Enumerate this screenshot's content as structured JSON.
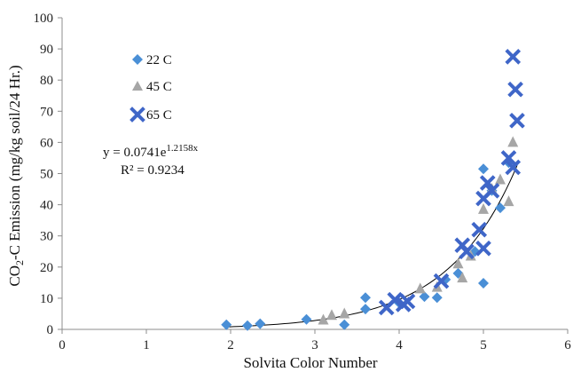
{
  "chart_data": {
    "type": "scatter",
    "xlabel": "Solvita Color Number",
    "ylabel_parts": [
      "CO",
      "2",
      "-C Emission (mg/kg soil/24 Hr.)"
    ],
    "xlim": [
      0,
      6
    ],
    "ylim": [
      0,
      100
    ],
    "xticks": [
      0,
      1,
      2,
      3,
      4,
      5,
      6
    ],
    "yticks": [
      0,
      10,
      20,
      30,
      40,
      50,
      60,
      70,
      80,
      90,
      100
    ],
    "grid": false,
    "legend_position": "top-left",
    "series": [
      {
        "name": "22 C",
        "marker": "diamond",
        "color": "#4a8fd6",
        "points": [
          [
            1.95,
            1.5
          ],
          [
            2.2,
            1.2
          ],
          [
            2.35,
            1.8
          ],
          [
            2.9,
            3.2
          ],
          [
            3.35,
            1.5
          ],
          [
            3.6,
            10.2
          ],
          [
            3.6,
            6.5
          ],
          [
            4.0,
            8.5
          ],
          [
            4.3,
            10.5
          ],
          [
            4.45,
            10.2
          ],
          [
            4.55,
            16.0
          ],
          [
            4.7,
            18.0
          ],
          [
            4.9,
            25.0
          ],
          [
            5.0,
            51.5
          ],
          [
            5.0,
            14.8
          ],
          [
            5.1,
            44.5
          ],
          [
            5.2,
            39.0
          ],
          [
            5.3,
            53.5
          ]
        ]
      },
      {
        "name": "45 C",
        "marker": "triangle",
        "color": "#a6a6a6",
        "points": [
          [
            3.1,
            3.0
          ],
          [
            3.2,
            4.5
          ],
          [
            3.35,
            5.0
          ],
          [
            4.25,
            13.0
          ],
          [
            4.45,
            13.5
          ],
          [
            4.7,
            21.0
          ],
          [
            4.75,
            16.5
          ],
          [
            4.85,
            23.5
          ],
          [
            5.0,
            38.5
          ],
          [
            5.1,
            45.0
          ],
          [
            5.2,
            48.0
          ],
          [
            5.3,
            41.0
          ],
          [
            5.35,
            60.0
          ]
        ]
      },
      {
        "name": "65 C",
        "marker": "x",
        "color": "#3f66c8",
        "points": [
          [
            3.85,
            7.0
          ],
          [
            3.95,
            9.5
          ],
          [
            4.05,
            8.0
          ],
          [
            4.1,
            9.0
          ],
          [
            4.5,
            15.5
          ],
          [
            4.75,
            27.0
          ],
          [
            4.8,
            25.0
          ],
          [
            4.95,
            32.0
          ],
          [
            5.0,
            26.0
          ],
          [
            5.0,
            42.0
          ],
          [
            5.05,
            47.0
          ],
          [
            5.1,
            44.5
          ],
          [
            5.3,
            55.0
          ],
          [
            5.35,
            87.5
          ],
          [
            5.38,
            77.0
          ],
          [
            5.4,
            67.0
          ],
          [
            5.35,
            52.0
          ]
        ]
      }
    ],
    "trendline": {
      "type": "exponential",
      "a": 0.0741,
      "b": 1.2158,
      "x_range": [
        1.95,
        5.4
      ],
      "color": "#000000"
    },
    "annotation": {
      "eq_prefix": "y = 0.0741e",
      "eq_exponent": "1.2158x",
      "r2": "R² = 0.9234"
    }
  }
}
